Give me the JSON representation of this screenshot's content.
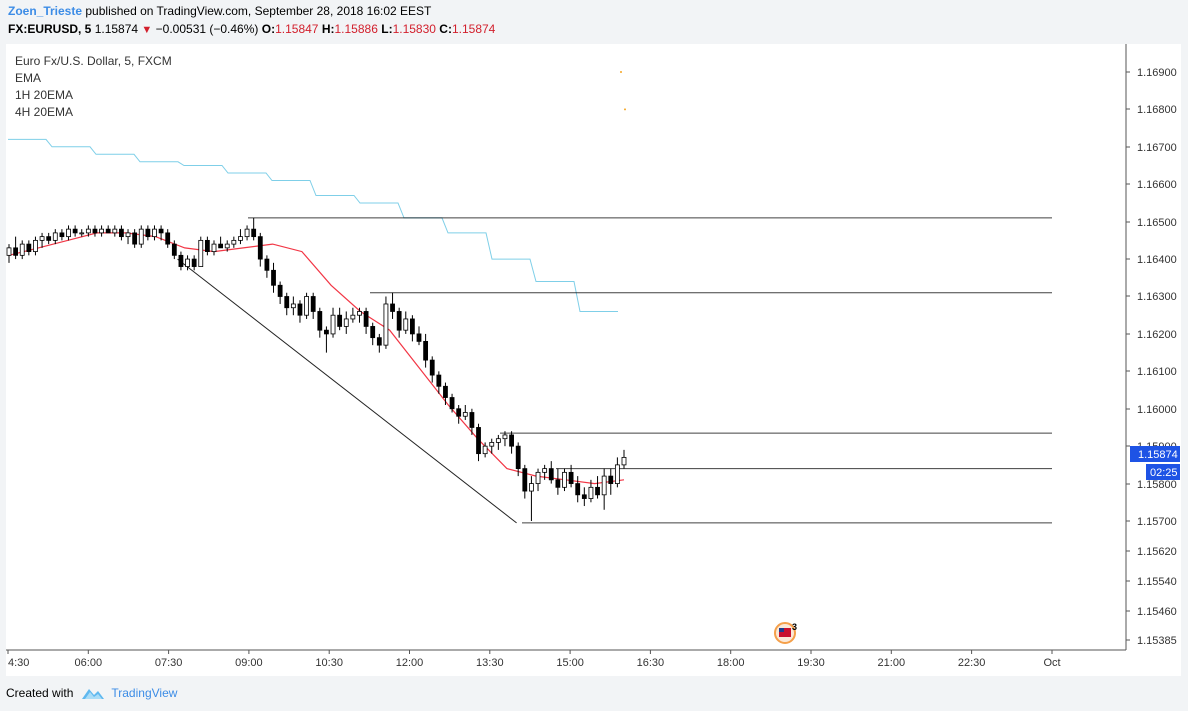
{
  "header": {
    "author": "Zoen_Trieste",
    "published_text": "published on TradingView.com, September 28, 2018 16:02 EEST",
    "symbol": "FX:EURUSD, 5",
    "last": "1.15874",
    "change": "−0.00531 (−0.46%)",
    "o_label": "O:",
    "o_value": "1.15847",
    "h_label": "H:",
    "h_value": "1.15886",
    "l_label": "L:",
    "l_value": "1.15830",
    "c_label": "C:",
    "c_value": "1.15874"
  },
  "legend": {
    "title": "Euro Fx/U.S. Dollar, 5, FXCM",
    "items": [
      "EMA",
      "1H 20EMA",
      "4H 20EMA"
    ]
  },
  "price_label": "1.15874",
  "countdown": "02:25",
  "event_marker_count": "3",
  "footer": {
    "created_with": "Created with",
    "brand": "TradingView"
  },
  "colors": {
    "up": "#ffffff",
    "down": "#000000",
    "ema": "#f23645",
    "ema_1h": "#7fcfe8",
    "ema_4h": "#f5a623",
    "accent": "#1e53e5",
    "lines": "#000000",
    "brand": "#3c8ce6"
  },
  "chart_data": {
    "type": "candlestick",
    "y_ticks": [
      "1.16900",
      "1.16800",
      "1.16700",
      "1.16600",
      "1.16500",
      "1.16400",
      "1.16300",
      "1.16200",
      "1.16100",
      "1.16000",
      "1.15900",
      "1.15800",
      "1.15700",
      "1.15620",
      "1.15540",
      "1.15460",
      "1.15385"
    ],
    "x_ticks": [
      "4:30",
      "06:00",
      "07:30",
      "09:00",
      "10:30",
      "12:00",
      "13:30",
      "15:00",
      "16:30",
      "18:00",
      "19:30",
      "21:00",
      "22:30",
      "Oct"
    ],
    "x_range": [
      "04:30",
      "Oct"
    ],
    "y_range": [
      1.15385,
      1.169
    ],
    "horizontal_levels": [
      1.1651,
      1.1631,
      1.15935,
      1.1584,
      1.15695
    ],
    "trendline": {
      "from": [
        "07:40",
        1.164
      ],
      "to": [
        "14:00",
        1.15695
      ]
    },
    "candles": [
      {
        "o": 1.1641,
        "h": 1.1644,
        "l": 1.1639,
        "c": 1.1643
      },
      {
        "o": 1.1643,
        "h": 1.1646,
        "l": 1.164,
        "c": 1.1641
      },
      {
        "o": 1.1641,
        "h": 1.1645,
        "l": 1.164,
        "c": 1.1644
      },
      {
        "o": 1.1644,
        "h": 1.1645,
        "l": 1.1641,
        "c": 1.1642
      },
      {
        "o": 1.1642,
        "h": 1.1646,
        "l": 1.1641,
        "c": 1.1645
      },
      {
        "o": 1.1645,
        "h": 1.1647,
        "l": 1.1643,
        "c": 1.1646
      },
      {
        "o": 1.1646,
        "h": 1.1647,
        "l": 1.1644,
        "c": 1.1645
      },
      {
        "o": 1.1645,
        "h": 1.1648,
        "l": 1.1644,
        "c": 1.1647
      },
      {
        "o": 1.1647,
        "h": 1.1648,
        "l": 1.1645,
        "c": 1.1646
      },
      {
        "o": 1.1646,
        "h": 1.1649,
        "l": 1.1645,
        "c": 1.1648
      },
      {
        "o": 1.1648,
        "h": 1.1649,
        "l": 1.1646,
        "c": 1.1647
      },
      {
        "o": 1.1647,
        "h": 1.1648,
        "l": 1.1646,
        "c": 1.1647
      },
      {
        "o": 1.1647,
        "h": 1.1649,
        "l": 1.1646,
        "c": 1.1648
      },
      {
        "o": 1.1648,
        "h": 1.1649,
        "l": 1.1646,
        "c": 1.1647
      },
      {
        "o": 1.1647,
        "h": 1.1649,
        "l": 1.1646,
        "c": 1.1648
      },
      {
        "o": 1.1648,
        "h": 1.1649,
        "l": 1.1647,
        "c": 1.1647
      },
      {
        "o": 1.1647,
        "h": 1.1649,
        "l": 1.1646,
        "c": 1.1648
      },
      {
        "o": 1.1648,
        "h": 1.1649,
        "l": 1.1645,
        "c": 1.1646
      },
      {
        "o": 1.1646,
        "h": 1.1648,
        "l": 1.1644,
        "c": 1.1647
      },
      {
        "o": 1.1647,
        "h": 1.1648,
        "l": 1.1643,
        "c": 1.1644
      },
      {
        "o": 1.1644,
        "h": 1.1649,
        "l": 1.1643,
        "c": 1.1648
      },
      {
        "o": 1.1648,
        "h": 1.1649,
        "l": 1.1645,
        "c": 1.1646
      },
      {
        "o": 1.1646,
        "h": 1.1649,
        "l": 1.1645,
        "c": 1.1648
      },
      {
        "o": 1.1648,
        "h": 1.1649,
        "l": 1.1645,
        "c": 1.1647
      },
      {
        "o": 1.1647,
        "h": 1.1648,
        "l": 1.1643,
        "c": 1.1644
      },
      {
        "o": 1.1644,
        "h": 1.1645,
        "l": 1.164,
        "c": 1.1641
      },
      {
        "o": 1.1641,
        "h": 1.1642,
        "l": 1.1637,
        "c": 1.1638
      },
      {
        "o": 1.1638,
        "h": 1.1641,
        "l": 1.1637,
        "c": 1.164
      },
      {
        "o": 1.164,
        "h": 1.1641,
        "l": 1.1637,
        "c": 1.1638
      },
      {
        "o": 1.1638,
        "h": 1.1646,
        "l": 1.1638,
        "c": 1.1645
      },
      {
        "o": 1.1645,
        "h": 1.1646,
        "l": 1.1641,
        "c": 1.1642
      },
      {
        "o": 1.1642,
        "h": 1.1645,
        "l": 1.1641,
        "c": 1.1644
      },
      {
        "o": 1.1644,
        "h": 1.1646,
        "l": 1.1643,
        "c": 1.1643
      },
      {
        "o": 1.1643,
        "h": 1.1645,
        "l": 1.1642,
        "c": 1.1644
      },
      {
        "o": 1.1644,
        "h": 1.1646,
        "l": 1.1643,
        "c": 1.1645
      },
      {
        "o": 1.1645,
        "h": 1.1648,
        "l": 1.1644,
        "c": 1.1646
      },
      {
        "o": 1.1646,
        "h": 1.1649,
        "l": 1.1645,
        "c": 1.1648
      },
      {
        "o": 1.1648,
        "h": 1.1651,
        "l": 1.1645,
        "c": 1.1646
      },
      {
        "o": 1.1646,
        "h": 1.1647,
        "l": 1.1638,
        "c": 1.164
      },
      {
        "o": 1.164,
        "h": 1.1641,
        "l": 1.1635,
        "c": 1.1637
      },
      {
        "o": 1.1637,
        "h": 1.1639,
        "l": 1.1631,
        "c": 1.1633
      },
      {
        "o": 1.1633,
        "h": 1.1634,
        "l": 1.1628,
        "c": 1.163
      },
      {
        "o": 1.163,
        "h": 1.1631,
        "l": 1.1625,
        "c": 1.1627
      },
      {
        "o": 1.1627,
        "h": 1.163,
        "l": 1.1625,
        "c": 1.1628
      },
      {
        "o": 1.1628,
        "h": 1.1629,
        "l": 1.1623,
        "c": 1.1625
      },
      {
        "o": 1.1625,
        "h": 1.1631,
        "l": 1.1624,
        "c": 1.163
      },
      {
        "o": 1.163,
        "h": 1.1631,
        "l": 1.1624,
        "c": 1.1626
      },
      {
        "o": 1.1626,
        "h": 1.1627,
        "l": 1.1619,
        "c": 1.1621
      },
      {
        "o": 1.1621,
        "h": 1.1622,
        "l": 1.1615,
        "c": 1.162
      },
      {
        "o": 1.162,
        "h": 1.1627,
        "l": 1.1619,
        "c": 1.1625
      },
      {
        "o": 1.1625,
        "h": 1.1627,
        "l": 1.1621,
        "c": 1.1622
      },
      {
        "o": 1.1622,
        "h": 1.1626,
        "l": 1.162,
        "c": 1.1624
      },
      {
        "o": 1.1624,
        "h": 1.1627,
        "l": 1.1623,
        "c": 1.1625
      },
      {
        "o": 1.1625,
        "h": 1.1627,
        "l": 1.1623,
        "c": 1.1626
      },
      {
        "o": 1.1626,
        "h": 1.1627,
        "l": 1.162,
        "c": 1.1622
      },
      {
        "o": 1.1622,
        "h": 1.1623,
        "l": 1.1617,
        "c": 1.1619
      },
      {
        "o": 1.1619,
        "h": 1.162,
        "l": 1.1615,
        "c": 1.1617
      },
      {
        "o": 1.1617,
        "h": 1.163,
        "l": 1.1616,
        "c": 1.1628
      },
      {
        "o": 1.1628,
        "h": 1.1631,
        "l": 1.1624,
        "c": 1.1626
      },
      {
        "o": 1.1626,
        "h": 1.1627,
        "l": 1.1619,
        "c": 1.1621
      },
      {
        "o": 1.1621,
        "h": 1.1626,
        "l": 1.162,
        "c": 1.1624
      },
      {
        "o": 1.1624,
        "h": 1.1625,
        "l": 1.1618,
        "c": 1.162
      },
      {
        "o": 1.162,
        "h": 1.1622,
        "l": 1.1617,
        "c": 1.1618
      },
      {
        "o": 1.1618,
        "h": 1.162,
        "l": 1.1611,
        "c": 1.1613
      },
      {
        "o": 1.1613,
        "h": 1.1614,
        "l": 1.1607,
        "c": 1.1609
      },
      {
        "o": 1.1609,
        "h": 1.161,
        "l": 1.1604,
        "c": 1.1606
      },
      {
        "o": 1.1606,
        "h": 1.1607,
        "l": 1.1601,
        "c": 1.1603
      },
      {
        "o": 1.1603,
        "h": 1.1604,
        "l": 1.1599,
        "c": 1.16
      },
      {
        "o": 1.16,
        "h": 1.1601,
        "l": 1.1596,
        "c": 1.1598
      },
      {
        "o": 1.1598,
        "h": 1.1601,
        "l": 1.1597,
        "c": 1.1599
      },
      {
        "o": 1.1599,
        "h": 1.16,
        "l": 1.1593,
        "c": 1.1595
      },
      {
        "o": 1.1595,
        "h": 1.1596,
        "l": 1.1586,
        "c": 1.1588
      },
      {
        "o": 1.1588,
        "h": 1.1591,
        "l": 1.1587,
        "c": 1.159
      },
      {
        "o": 1.159,
        "h": 1.1592,
        "l": 1.1588,
        "c": 1.1591
      },
      {
        "o": 1.1591,
        "h": 1.1593,
        "l": 1.1589,
        "c": 1.1592
      },
      {
        "o": 1.1592,
        "h": 1.1594,
        "l": 1.159,
        "c": 1.1593
      },
      {
        "o": 1.1593,
        "h": 1.1594,
        "l": 1.1588,
        "c": 1.159
      },
      {
        "o": 1.159,
        "h": 1.1591,
        "l": 1.1582,
        "c": 1.1584
      },
      {
        "o": 1.1584,
        "h": 1.1585,
        "l": 1.1576,
        "c": 1.1578
      },
      {
        "o": 1.1578,
        "h": 1.1582,
        "l": 1.157,
        "c": 1.158
      },
      {
        "o": 1.158,
        "h": 1.1584,
        "l": 1.1578,
        "c": 1.1583
      },
      {
        "o": 1.1583,
        "h": 1.1585,
        "l": 1.1581,
        "c": 1.1584
      },
      {
        "o": 1.1584,
        "h": 1.1586,
        "l": 1.158,
        "c": 1.1581
      },
      {
        "o": 1.1581,
        "h": 1.1584,
        "l": 1.1577,
        "c": 1.1579
      },
      {
        "o": 1.1579,
        "h": 1.1584,
        "l": 1.1578,
        "c": 1.1583
      },
      {
        "o": 1.1583,
        "h": 1.1585,
        "l": 1.1579,
        "c": 1.158
      },
      {
        "o": 1.158,
        "h": 1.1582,
        "l": 1.1575,
        "c": 1.1577
      },
      {
        "o": 1.1577,
        "h": 1.1579,
        "l": 1.1574,
        "c": 1.1576
      },
      {
        "o": 1.1576,
        "h": 1.1581,
        "l": 1.1575,
        "c": 1.1579
      },
      {
        "o": 1.1579,
        "h": 1.1582,
        "l": 1.1576,
        "c": 1.1577
      },
      {
        "o": 1.1577,
        "h": 1.1584,
        "l": 1.1573,
        "c": 1.1582
      },
      {
        "o": 1.1582,
        "h": 1.1584,
        "l": 1.1577,
        "c": 1.158
      },
      {
        "o": 1.158,
        "h": 1.1587,
        "l": 1.1579,
        "c": 1.1585
      },
      {
        "o": 1.1585,
        "h": 1.1589,
        "l": 1.1584,
        "c": 1.1587
      }
    ],
    "ema": [
      1.1641,
      1.1643,
      1.1645,
      1.1647,
      1.1647,
      1.1646,
      1.1643,
      1.1642,
      1.1643,
      1.1644,
      1.1642,
      1.1633,
      1.1626,
      1.1621,
      1.1611,
      1.1601,
      1.1592,
      1.1584,
      1.1582,
      1.1581,
      1.158,
      1.1581
    ],
    "ema_1h": [
      1.1672,
      1.167,
      1.1668,
      1.1666,
      1.1665,
      1.1663,
      1.1661,
      1.1657,
      1.1655,
      1.1651,
      1.1647,
      1.164,
      1.1634,
      1.1626
    ],
    "ema_4h_points": [
      1.169,
      1.168
    ]
  }
}
